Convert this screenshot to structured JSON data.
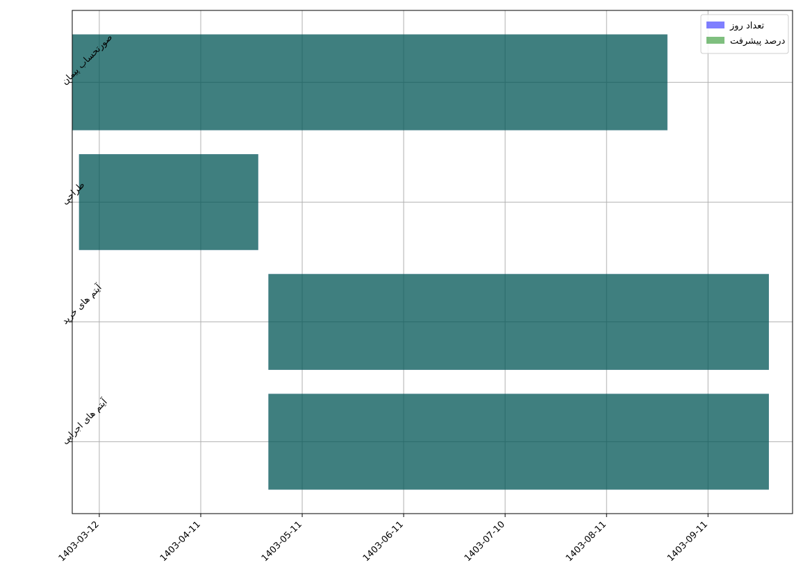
{
  "chart_data": {
    "type": "bar",
    "orientation": "horizontal",
    "categories": [
      "صورتحساب پیمان",
      "طراحی",
      "آیتم های خرید",
      "آیتم های اجرایی"
    ],
    "x_axis": {
      "ticks": [
        "1403-03-12",
        "1403-04-11",
        "1403-05-11",
        "1403-06-11",
        "1403-07-10",
        "1403-08-11",
        "1403-09-11"
      ],
      "tick_index": [
        0,
        30,
        60,
        90,
        120,
        150,
        180
      ],
      "range": [
        -8,
        205
      ]
    },
    "series": [
      {
        "name": "تعداد روز",
        "color": "#0000ff",
        "opacity": 0.5,
        "bars": [
          {
            "start": -8,
            "end": 168
          },
          {
            "start": -6,
            "end": 47
          },
          {
            "start": 50,
            "end": 198
          },
          {
            "start": 50,
            "end": 198
          }
        ]
      },
      {
        "name": "درصد پیشرفت",
        "color": "#008000",
        "opacity": 0.5,
        "bars": [
          {
            "start": -8,
            "end": 168
          },
          {
            "start": -6,
            "end": 47
          },
          {
            "start": 50,
            "end": 198
          },
          {
            "start": 50,
            "end": 198
          }
        ]
      }
    ],
    "grid": true,
    "legend_position": "top-right",
    "title": "",
    "xlabel": "",
    "ylabel": ""
  }
}
